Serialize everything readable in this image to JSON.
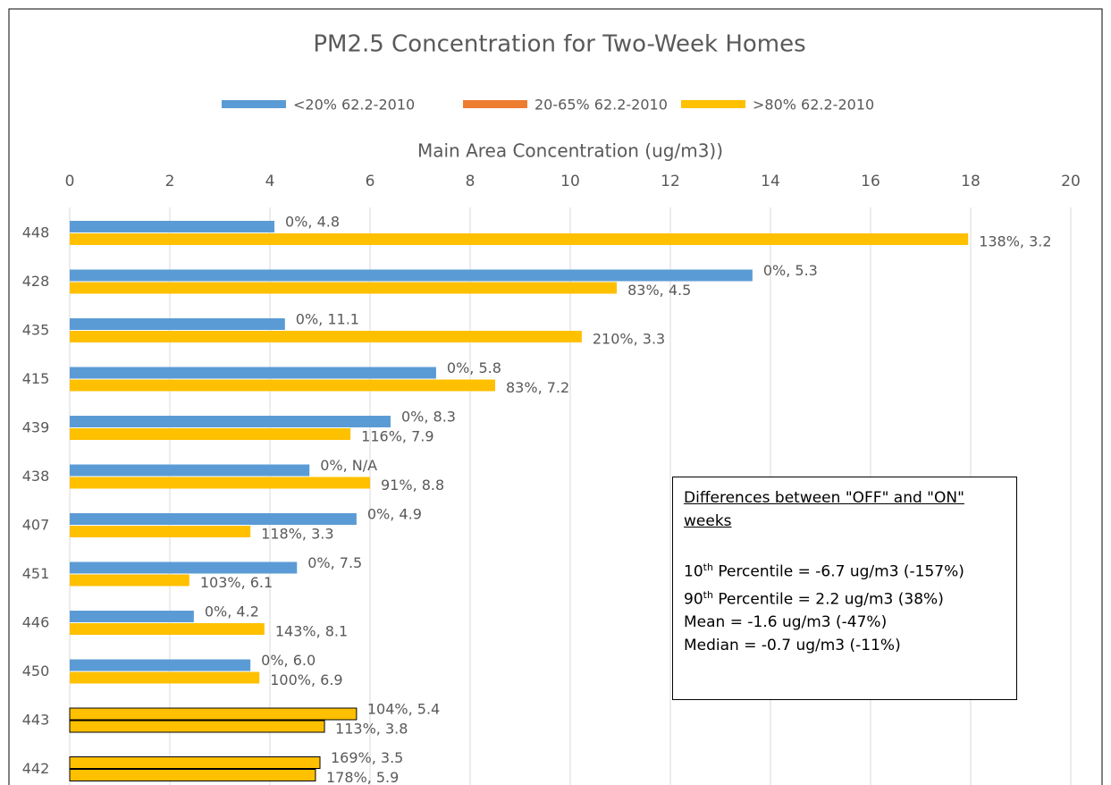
{
  "chart_data": {
    "type": "bar",
    "orientation": "horizontal",
    "title": "PM2.5 Concentration for Two-Week Homes",
    "xlabel": "Main Area Concentration (ug/m3))",
    "categories": [
      "448",
      "428",
      "435",
      "415",
      "439",
      "438",
      "407",
      "451",
      "446",
      "450",
      "443",
      "442"
    ],
    "xlim": [
      0,
      20
    ],
    "xticks": [
      0,
      2,
      4,
      6,
      8,
      10,
      12,
      14,
      16,
      18,
      20
    ],
    "grid": true,
    "legend": "top",
    "series": [
      {
        "name": "<20% 62.2-2010",
        "color": "#5b9bd5",
        "bar_in_pair": 0,
        "values": [
          4.09,
          13.64,
          4.3,
          7.32,
          6.41,
          4.79,
          5.73,
          4.54,
          2.48,
          3.61,
          null,
          null
        ],
        "value_labels": [
          "0%, 4.8",
          "0%, 5.3",
          "0%, 11.1",
          "0%, 5.8",
          "0%, 8.3",
          "0%, N/A",
          "0%, 4.9",
          "0%, 7.5",
          "0%, 4.2",
          "0%, 6.0",
          null,
          null
        ]
      },
      {
        "name": "20-65% 62.2-2010",
        "color": "#ed7d31",
        "bar_in_pair": 0,
        "values": [
          null,
          null,
          null,
          null,
          null,
          null,
          null,
          null,
          null,
          null,
          null,
          null
        ]
      },
      {
        "name": ">80% 62.2-2010",
        "color": "#ffc000",
        "bar_in_pair": 1,
        "values": [
          17.95,
          10.93,
          10.23,
          8.5,
          5.61,
          6.0,
          3.61,
          2.39,
          3.89,
          3.79,
          null,
          null
        ],
        "value_labels": [
          "138%, 3.2",
          "83%, 4.5",
          "210%, 3.3",
          "83%, 7.2",
          "116%, 7.9",
          "91%, 8.8",
          "118%, 3.3",
          "103%, 6.1",
          "143%, 8.1",
          "100%, 6.9",
          null,
          null
        ]
      },
      {
        "color": "#ffc000",
        "outline": "#000000",
        "bar_in_pair": 0,
        "values": [
          null,
          null,
          null,
          null,
          null,
          null,
          null,
          null,
          null,
          null,
          5.73,
          5.0
        ],
        "value_labels": [
          null,
          null,
          null,
          null,
          null,
          null,
          null,
          null,
          null,
          null,
          "104%, 5.4",
          "169%, 3.5"
        ]
      },
      {
        "color": "#ffc000",
        "outline": "#000000",
        "bar_in_pair": 1,
        "values": [
          null,
          null,
          null,
          null,
          null,
          null,
          null,
          null,
          null,
          null,
          5.09,
          4.91
        ],
        "value_labels": [
          null,
          null,
          null,
          null,
          null,
          null,
          null,
          null,
          null,
          null,
          "113%, 3.8",
          "178%, 5.9"
        ]
      }
    ],
    "annotation": {
      "heading": "Differences between \"OFF\" and \"ON\" weeks",
      "lines": [
        {
          "number": "10",
          "sup": "th",
          "text": " Percentile = -6.7 ug/m3 (-157%)"
        },
        {
          "number": "90",
          "sup": "th",
          "text": " Percentile = 2.2 ug/m3 (38%)"
        },
        {
          "text": "Mean = -1.6 ug/m3 (-47%)"
        },
        {
          "text": "Median = -0.7 ug/m3 (-11%)"
        }
      ]
    }
  }
}
